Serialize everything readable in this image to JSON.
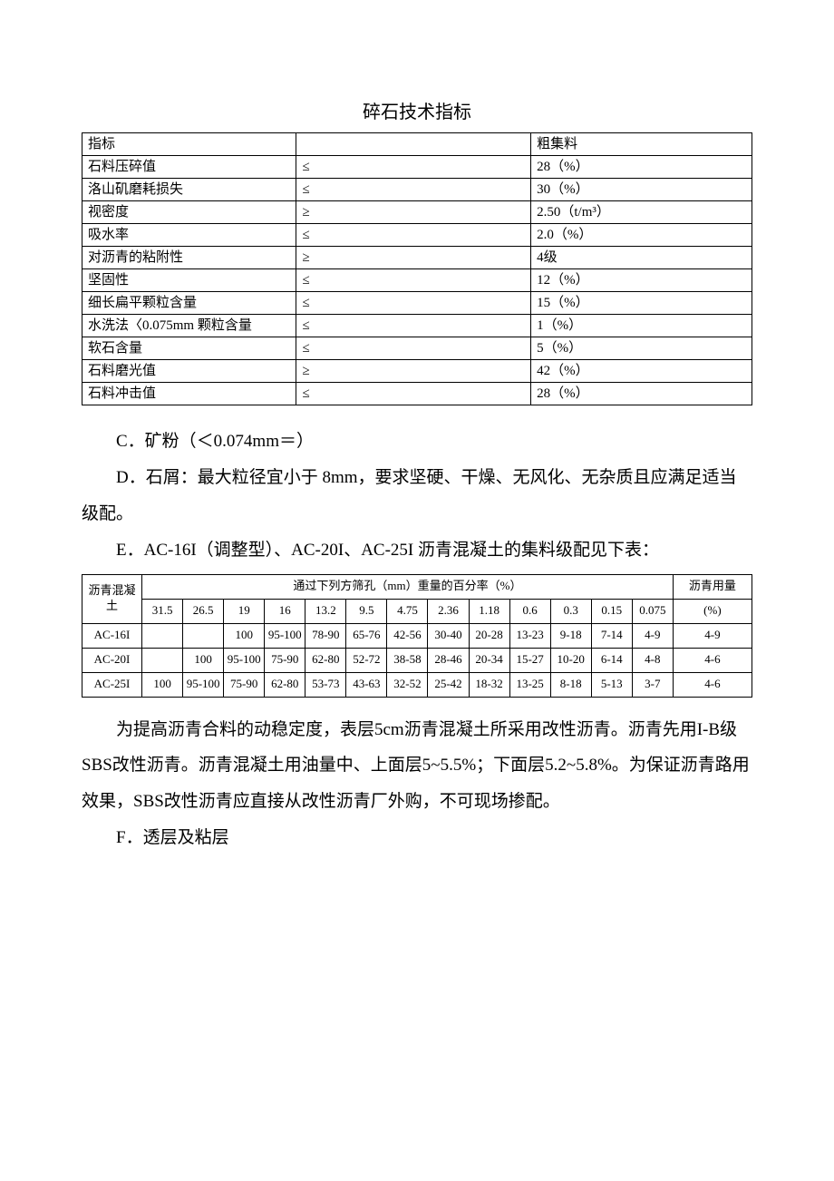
{
  "title1": "碎石技术指标",
  "table1": {
    "columns": [
      "指标",
      "",
      "粗集料"
    ],
    "rows": [
      [
        "石料压碎值",
        "≤",
        "28（%）"
      ],
      [
        "洛山矶磨耗损失",
        "≤",
        "30（%）"
      ],
      [
        "视密度",
        "≥",
        "2.50（t/m³）"
      ],
      [
        "吸水率",
        "≤",
        "2.0（%）"
      ],
      [
        "对沥青的粘附性",
        "≥",
        "4级"
      ],
      [
        "坚固性",
        "≤",
        "12（%）"
      ],
      [
        "细长扁平颗粒含量",
        "≤",
        "15（%）"
      ],
      [
        "水洗法〈0.075mm 颗粒含量",
        "≤",
        "1（%）"
      ],
      [
        "软石含量",
        "≤",
        "5（%）"
      ],
      [
        "石料磨光值",
        "≥",
        "42（%）"
      ],
      [
        "石料冲击值",
        "≤",
        "28（%）"
      ]
    ]
  },
  "paraC": "C．矿粉（＜0.074mm＝）",
  "paraD": "D．石屑：最大粒径宜小于 8mm，要求坚硬、干燥、无风化、无杂质且应满足适当级配。",
  "paraE": "E．AC-16I（调整型）、AC-20I、AC-25I 沥青混凝土的集料级配见下表：",
  "table2": {
    "header_top": {
      "label": "沥青混凝土",
      "span_title": "通过下列方筛孔（mm）重量的百分率（%）",
      "last": "沥青用量"
    },
    "sizes": [
      "31.5",
      "26.5",
      "19",
      "16",
      "13.2",
      "9.5",
      "4.75",
      "2.36",
      "1.18",
      "0.6",
      "0.3",
      "0.15",
      "0.075",
      "(%)"
    ],
    "rows": [
      {
        "name": "AC-16I",
        "vals": [
          "",
          "",
          "100",
          "95-100",
          "78-90",
          "65-76",
          "42-56",
          "30-40",
          "20-28",
          "13-23",
          "9-18",
          "7-14",
          "4-9",
          "4-9"
        ]
      },
      {
        "name": "AC-20I",
        "vals": [
          "",
          "100",
          "95-100",
          "75-90",
          "62-80",
          "52-72",
          "38-58",
          "28-46",
          "20-34",
          "15-27",
          "10-20",
          "6-14",
          "4-8",
          "4-6"
        ]
      },
      {
        "name": "AC-25I",
        "vals": [
          "100",
          "95-100",
          "75-90",
          "62-80",
          "53-73",
          "43-63",
          "32-52",
          "25-42",
          "18-32",
          "13-25",
          "8-18",
          "5-13",
          "3-7",
          "4-6"
        ]
      }
    ]
  },
  "paraBody": "为提高沥青合料的动稳定度，表层5cm沥青混凝土所采用改性沥青。沥青先用I-B级SBS改性沥青。沥青混凝土用油量中、上面层5~5.5%；下面层5.2~5.8%。为保证沥青路用效果，SBS改性沥青应直接从改性沥青厂外购，不可现场掺配。",
  "paraF": "F．透层及粘层",
  "style": {
    "background_color": "#ffffff",
    "text_color": "#000000",
    "border_color": "#000000",
    "body_fontsize": 19,
    "table1_fontsize": 15,
    "table2_fontsize": 13,
    "title_fontsize": 20
  }
}
